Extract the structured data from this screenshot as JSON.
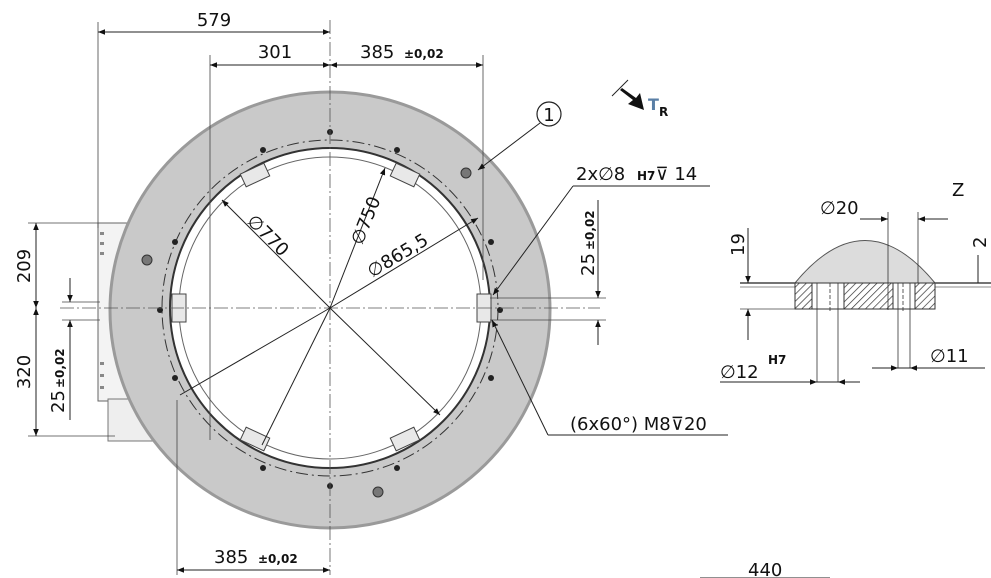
{
  "colors": {
    "ring_fill": "#c9c9c9",
    "ring_edge": "#8a8a8a",
    "line": "#222222",
    "tr_accent": "#5a7fa6"
  },
  "top_dims": {
    "d579": "579",
    "d301": "301",
    "d385_top": "385",
    "d385_top_tol": "±0,02"
  },
  "bottom_dims": {
    "d385_bottom": "385",
    "d385_bottom_tol": "±0,02",
    "d440": "440"
  },
  "left_dims": {
    "d209": "209",
    "d320": "320",
    "d25_left": "25",
    "d25_left_tol": "±0,02"
  },
  "right_dims": {
    "d25_right": "25",
    "d25_right_tol": "±0,02"
  },
  "diameters": {
    "d770": "770",
    "d750": "750",
    "d8655": "865,5"
  },
  "callouts": {
    "item_number": "1",
    "holes_top_prefix": "2x",
    "holes_top_dia": "8",
    "holes_top_fit": "H7",
    "holes_top_depth": "14",
    "holes_bottom_prefix": "(6x60°) M8",
    "holes_bottom_depth": "20"
  },
  "tr": {
    "letter": "T",
    "sub": "R"
  },
  "detail_z": {
    "title": "Z",
    "dia20": "20",
    "h19": "19",
    "h2": "2",
    "dia12": "12",
    "dia12_fit": "H7",
    "dia11": "11"
  },
  "symbols": {
    "diameter": "∅",
    "depth": "⊽"
  }
}
